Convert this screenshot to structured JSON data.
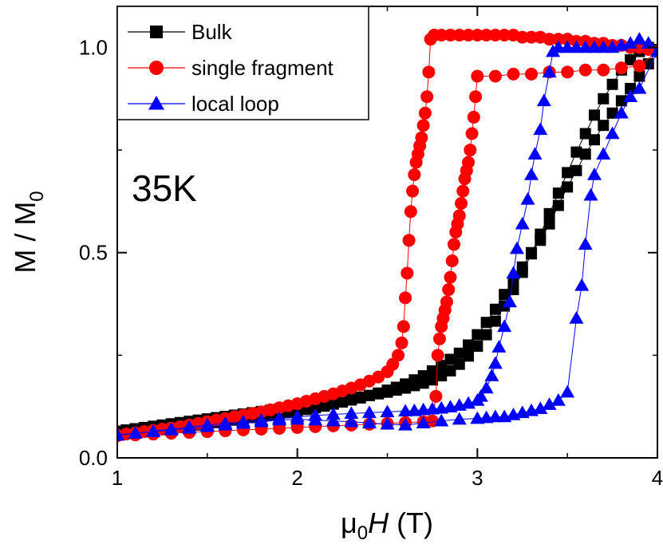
{
  "chart_data": {
    "type": "scatter",
    "xlim": [
      1,
      4
    ],
    "ylim": [
      0,
      1.1
    ],
    "x_ticks": [
      "1",
      "2",
      "3",
      "4"
    ],
    "y_ticks": [
      "0.0",
      "0.5",
      "1.0"
    ],
    "xlabel": {
      "prefix": "μ",
      "sub": "0",
      "italic": "H",
      "suffix": " (T)"
    },
    "ylabel": {
      "main": "M / M",
      "sub": "0"
    },
    "annotation": "35K",
    "legend_position": "top-left",
    "grid": false,
    "series": [
      {
        "name": "Bulk",
        "color": "#000000",
        "marker": "square",
        "x": [
          1.0,
          1.05,
          1.1,
          1.15,
          1.2,
          1.25,
          1.3,
          1.35,
          1.4,
          1.45,
          1.5,
          1.55,
          1.6,
          1.65,
          1.7,
          1.75,
          1.8,
          1.85,
          1.9,
          1.95,
          2.0,
          2.05,
          2.1,
          2.15,
          2.2,
          2.25,
          2.3,
          2.35,
          2.4,
          2.45,
          2.5,
          2.55,
          2.6,
          2.65,
          2.7,
          2.75,
          2.8,
          2.85,
          2.9,
          2.95,
          3.0,
          3.05,
          3.1,
          3.15,
          3.2,
          3.25,
          3.3,
          3.35,
          3.4,
          3.45,
          3.5,
          3.55,
          3.6,
          3.65,
          3.7,
          3.75,
          3.8,
          3.85,
          3.9,
          3.95,
          4.0,
          3.95,
          3.9,
          3.85,
          3.8,
          3.75,
          3.7,
          3.65,
          3.6,
          3.55,
          3.5,
          3.45,
          3.4,
          3.35,
          3.3,
          3.25,
          3.2,
          3.15,
          3.1,
          3.05,
          3.0,
          2.95,
          2.9,
          2.85,
          2.8,
          2.75,
          2.7,
          2.65,
          2.6,
          2.55,
          2.5,
          2.45,
          2.4,
          2.35,
          2.3,
          2.25,
          2.2,
          2.15,
          2.1,
          2.05,
          2.0,
          1.95,
          1.9,
          1.85,
          1.8,
          1.75,
          1.7,
          1.65,
          1.6,
          1.55,
          1.5,
          1.45,
          1.4,
          1.35,
          1.3,
          1.25,
          1.2,
          1.15,
          1.1,
          1.05,
          1.0
        ],
        "y": [
          0.065,
          0.068,
          0.071,
          0.074,
          0.077,
          0.08,
          0.083,
          0.086,
          0.089,
          0.092,
          0.095,
          0.098,
          0.101,
          0.104,
          0.107,
          0.11,
          0.113,
          0.116,
          0.119,
          0.122,
          0.125,
          0.128,
          0.131,
          0.134,
          0.137,
          0.14,
          0.144,
          0.148,
          0.152,
          0.156,
          0.16,
          0.165,
          0.17,
          0.176,
          0.182,
          0.19,
          0.2,
          0.212,
          0.228,
          0.248,
          0.272,
          0.3,
          0.333,
          0.37,
          0.41,
          0.452,
          0.497,
          0.545,
          0.595,
          0.645,
          0.695,
          0.745,
          0.79,
          0.835,
          0.875,
          0.91,
          0.945,
          0.97,
          0.99,
          1.0,
          0.995,
          0.96,
          0.93,
          0.9,
          0.87,
          0.84,
          0.81,
          0.775,
          0.74,
          0.7,
          0.66,
          0.615,
          0.57,
          0.53,
          0.5,
          0.465,
          0.43,
          0.398,
          0.362,
          0.33,
          0.3,
          0.275,
          0.255,
          0.24,
          0.225,
          0.212,
          0.2,
          0.19,
          0.18,
          0.172,
          0.165,
          0.158,
          0.152,
          0.146,
          0.141,
          0.136,
          0.131,
          0.126,
          0.122,
          0.118,
          0.114,
          0.11,
          0.107,
          0.104,
          0.101,
          0.098,
          0.095,
          0.092,
          0.089,
          0.086,
          0.083,
          0.08,
          0.078,
          0.076,
          0.074,
          0.072,
          0.07,
          0.068,
          0.066,
          0.064,
          0.062
        ]
      },
      {
        "name": "single fragment",
        "color": "#ff0000",
        "marker": "circle",
        "x": [
          1.0,
          1.05,
          1.1,
          1.15,
          1.2,
          1.25,
          1.3,
          1.35,
          1.4,
          1.45,
          1.5,
          1.55,
          1.6,
          1.65,
          1.7,
          1.75,
          1.8,
          1.85,
          1.9,
          1.95,
          2.0,
          2.05,
          2.1,
          2.15,
          2.2,
          2.25,
          2.3,
          2.35,
          2.4,
          2.45,
          2.5,
          2.53,
          2.56,
          2.58,
          2.59,
          2.6,
          2.61,
          2.62,
          2.63,
          2.64,
          2.65,
          2.66,
          2.67,
          2.68,
          2.69,
          2.7,
          2.71,
          2.72,
          2.73,
          2.74,
          2.76,
          2.8,
          2.85,
          2.9,
          2.95,
          3.0,
          3.05,
          3.1,
          3.15,
          3.2,
          3.25,
          3.3,
          3.35,
          3.4,
          3.45,
          3.5,
          3.55,
          3.6,
          3.65,
          3.7,
          3.75,
          3.8,
          3.85,
          3.9,
          3.95,
          4.0,
          3.9,
          3.8,
          3.7,
          3.6,
          3.5,
          3.4,
          3.3,
          3.2,
          3.1,
          3.0,
          2.99,
          2.98,
          2.97,
          2.96,
          2.95,
          2.94,
          2.93,
          2.92,
          2.91,
          2.9,
          2.89,
          2.88,
          2.87,
          2.86,
          2.85,
          2.84,
          2.83,
          2.82,
          2.81,
          2.8,
          2.79,
          2.78,
          2.77,
          2.75,
          2.7,
          2.6,
          2.5,
          2.4,
          2.3,
          2.2,
          2.1,
          2.0,
          1.9,
          1.8,
          1.7,
          1.6,
          1.5,
          1.4,
          1.3,
          1.2,
          1.1,
          1.0
        ],
        "y": [
          0.055,
          0.058,
          0.061,
          0.064,
          0.067,
          0.07,
          0.073,
          0.076,
          0.08,
          0.084,
          0.088,
          0.092,
          0.096,
          0.1,
          0.104,
          0.108,
          0.112,
          0.117,
          0.122,
          0.127,
          0.132,
          0.138,
          0.144,
          0.15,
          0.156,
          0.163,
          0.17,
          0.178,
          0.187,
          0.197,
          0.21,
          0.228,
          0.25,
          0.28,
          0.32,
          0.39,
          0.45,
          0.53,
          0.6,
          0.65,
          0.69,
          0.72,
          0.74,
          0.76,
          0.78,
          0.81,
          0.84,
          0.88,
          0.94,
          1.02,
          1.03,
          1.03,
          1.03,
          1.03,
          1.03,
          1.03,
          1.03,
          1.03,
          1.03,
          1.03,
          1.025,
          1.025,
          1.025,
          1.02,
          1.02,
          1.02,
          1.015,
          1.015,
          1.01,
          1.01,
          1.005,
          1.005,
          1.0,
          1.0,
          0.995,
          0.99,
          0.955,
          0.95,
          0.945,
          0.945,
          0.94,
          0.94,
          0.935,
          0.935,
          0.93,
          0.93,
          0.88,
          0.83,
          0.79,
          0.75,
          0.72,
          0.7,
          0.68,
          0.65,
          0.62,
          0.59,
          0.57,
          0.55,
          0.52,
          0.48,
          0.44,
          0.41,
          0.38,
          0.36,
          0.34,
          0.32,
          0.29,
          0.25,
          0.15,
          0.09,
          0.088,
          0.086,
          0.084,
          0.082,
          0.08,
          0.078,
          0.076,
          0.074,
          0.072,
          0.07,
          0.068,
          0.066,
          0.064,
          0.062,
          0.06,
          0.058,
          0.056,
          0.054
        ]
      },
      {
        "name": "local loop",
        "color": "#0000ff",
        "marker": "triangle",
        "x": [
          1.0,
          1.1,
          1.2,
          1.3,
          1.4,
          1.5,
          1.6,
          1.7,
          1.8,
          1.9,
          2.0,
          2.1,
          2.2,
          2.3,
          2.4,
          2.5,
          2.6,
          2.65,
          2.7,
          2.75,
          2.8,
          2.85,
          2.9,
          2.95,
          3.0,
          3.02,
          3.05,
          3.08,
          3.1,
          3.12,
          3.15,
          3.18,
          3.2,
          3.22,
          3.25,
          3.28,
          3.3,
          3.32,
          3.35,
          3.37,
          3.4,
          3.42,
          3.45,
          3.5,
          3.55,
          3.6,
          3.65,
          3.7,
          3.75,
          3.8,
          3.85,
          3.9,
          3.95,
          4.0,
          3.9,
          3.85,
          3.8,
          3.75,
          3.7,
          3.65,
          3.63,
          3.6,
          3.58,
          3.55,
          3.5,
          3.45,
          3.4,
          3.35,
          3.3,
          3.25,
          3.2,
          3.15,
          3.1,
          3.05,
          3.0,
          2.9,
          2.8,
          2.7,
          2.6,
          2.5,
          2.4,
          2.3,
          2.2,
          2.1,
          2.0,
          1.9,
          1.8,
          1.7,
          1.6,
          1.5,
          1.4,
          1.3,
          1.2,
          1.1,
          1.0
        ],
        "y": [
          0.055,
          0.06,
          0.065,
          0.07,
          0.075,
          0.08,
          0.084,
          0.088,
          0.092,
          0.096,
          0.1,
          0.103,
          0.106,
          0.108,
          0.11,
          0.112,
          0.114,
          0.115,
          0.117,
          0.119,
          0.121,
          0.124,
          0.128,
          0.133,
          0.14,
          0.15,
          0.17,
          0.2,
          0.23,
          0.27,
          0.32,
          0.38,
          0.45,
          0.51,
          0.57,
          0.63,
          0.69,
          0.74,
          0.8,
          0.87,
          0.94,
          0.99,
          1.0,
          1.0,
          1.0,
          1.0,
          1.0,
          1.0,
          1.0,
          1.005,
          1.01,
          1.02,
          1.01,
          0.99,
          0.9,
          0.88,
          0.84,
          0.79,
          0.74,
          0.69,
          0.64,
          0.52,
          0.42,
          0.34,
          0.16,
          0.14,
          0.13,
          0.12,
          0.115,
          0.11,
          0.105,
          0.1,
          0.1,
          0.098,
          0.096,
          0.094,
          0.09,
          0.085,
          0.08,
          0.082,
          0.085,
          0.088,
          0.09,
          0.092,
          0.094,
          0.092,
          0.088,
          0.084,
          0.08,
          0.076,
          0.072,
          0.068,
          0.064,
          0.06,
          0.056
        ]
      }
    ]
  }
}
